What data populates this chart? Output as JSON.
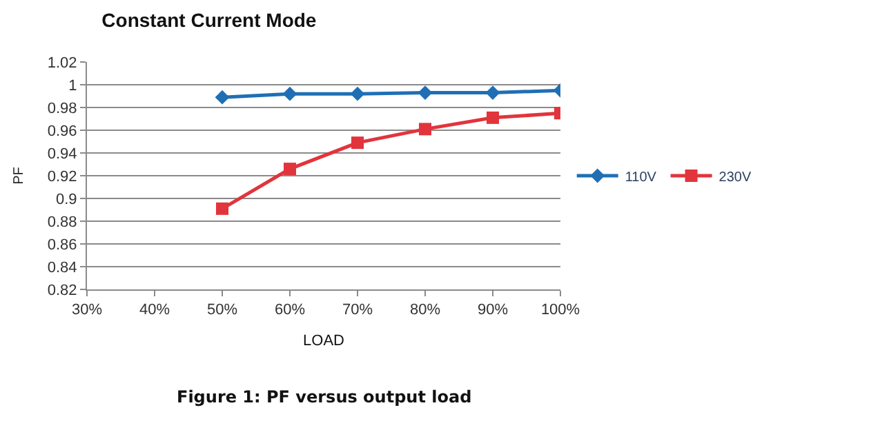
{
  "chart_data": {
    "type": "line",
    "title": "Constant Current Mode",
    "xlabel": "LOAD",
    "ylabel": "PF",
    "categories": [
      "30%",
      "40%",
      "50%",
      "60%",
      "70%",
      "80%",
      "90%",
      "100%"
    ],
    "series": [
      {
        "name": "110V",
        "color": "#1f6fb5",
        "marker": "diamond",
        "values": [
          null,
          null,
          0.989,
          0.992,
          0.992,
          0.993,
          0.993,
          0.995
        ]
      },
      {
        "name": "230V",
        "color": "#e2343c",
        "marker": "square",
        "values": [
          null,
          null,
          0.891,
          0.926,
          0.949,
          0.961,
          0.971,
          0.975
        ]
      }
    ],
    "ylim": [
      0.82,
      1.02
    ],
    "yticks": [
      0.82,
      0.84,
      0.86,
      0.88,
      {
        "value": 0.9,
        "label": "0.9"
      },
      0.92,
      0.94,
      0.96,
      0.98,
      {
        "value": 1,
        "label": "1"
      },
      1.02
    ],
    "grid": "y",
    "legend": "right",
    "line_style": "solid",
    "annotations": [
      "Figure 1: PF versus output load"
    ]
  }
}
